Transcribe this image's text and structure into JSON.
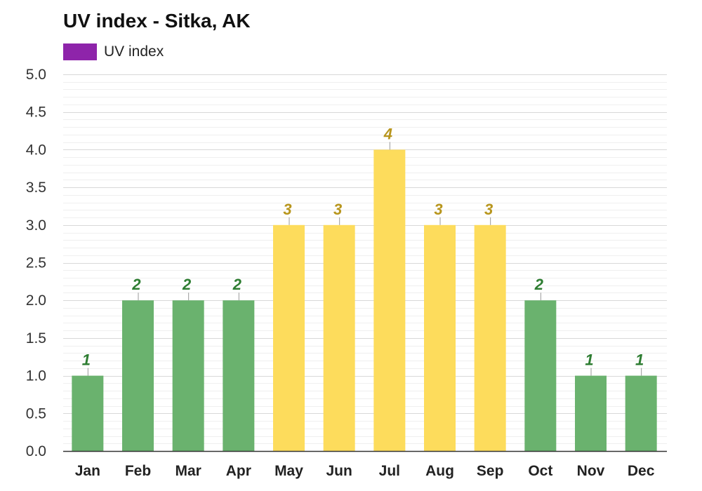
{
  "chart_data": {
    "type": "bar",
    "title": "UV index - Sitka, AK",
    "legend": [
      {
        "name": "UV index",
        "color": "#8e24aa"
      }
    ],
    "legend_position": "top-left",
    "categories": [
      "Jan",
      "Feb",
      "Mar",
      "Apr",
      "May",
      "Jun",
      "Jul",
      "Aug",
      "Sep",
      "Oct",
      "Nov",
      "Dec"
    ],
    "series": [
      {
        "name": "UV index",
        "values": [
          1,
          2,
          2,
          2,
          3,
          3,
          4,
          3,
          3,
          2,
          1,
          1
        ]
      }
    ],
    "data_labels": [
      "1",
      "2",
      "2",
      "2",
      "3",
      "3",
      "4",
      "3",
      "3",
      "2",
      "1",
      "1"
    ],
    "y_ticks": [
      "0.0",
      "0.5",
      "1.0",
      "1.5",
      "2.0",
      "2.5",
      "3.0",
      "3.5",
      "4.0",
      "4.5",
      "5.0"
    ],
    "ylim": [
      0,
      5
    ],
    "xlabel": "",
    "ylabel": "",
    "grid": true,
    "colors": {
      "low_bar": "#6ab26e",
      "low_label": "#2e7d32",
      "moderate_bar": "#fddc5c",
      "moderate_label": "#b8961e",
      "grid_major": "#d8d8d8",
      "grid_minor": "#efefef",
      "axis": "#333333"
    }
  }
}
